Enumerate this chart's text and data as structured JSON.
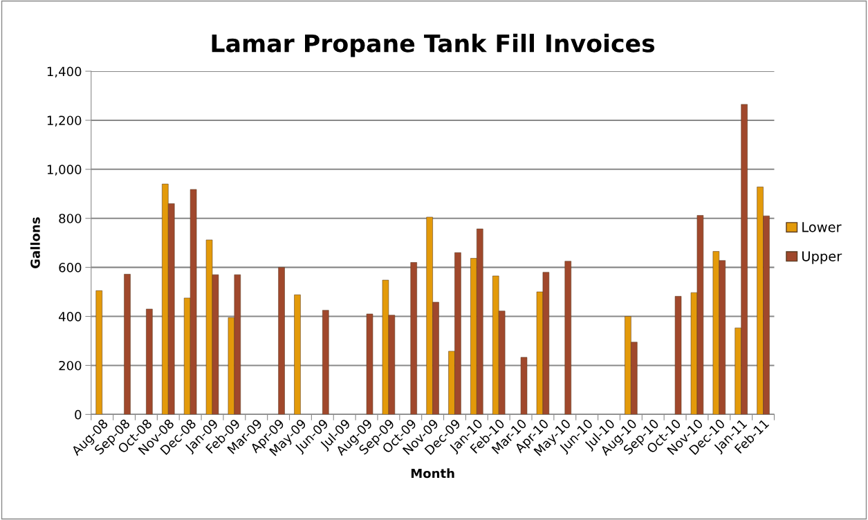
{
  "chart_data": {
    "type": "bar",
    "title": "Lamar Propane Tank Fill Invoices",
    "xlabel": "Month",
    "ylabel": "Gallons",
    "categories": [
      "Aug-08",
      "Sep-08",
      "Oct-08",
      "Nov-08",
      "Dec-08",
      "Jan-09",
      "Feb-09",
      "Mar-09",
      "Apr-09",
      "May-09",
      "Jun-09",
      "Jul-09",
      "Aug-09",
      "Sep-09",
      "Oct-09",
      "Nov-09",
      "Dec-09",
      "Jan-10",
      "Feb-10",
      "Mar-10",
      "Apr-10",
      "May-10",
      "Jun-10",
      "Jul-10",
      "Aug-10",
      "Sep-10",
      "Oct-10",
      "Nov-10",
      "Dec-10",
      "Jan-11",
      "Feb-11"
    ],
    "series": [
      {
        "name": "Lower",
        "color": "#e39a0a",
        "values": [
          505,
          null,
          null,
          940,
          475,
          712,
          395,
          null,
          null,
          488,
          null,
          null,
          null,
          548,
          null,
          805,
          258,
          637,
          565,
          null,
          500,
          null,
          null,
          null,
          400,
          null,
          null,
          497,
          665,
          353,
          928
        ]
      },
      {
        "name": "Upper",
        "color": "#a0482c",
        "values": [
          null,
          572,
          430,
          860,
          918,
          570,
          570,
          null,
          600,
          null,
          425,
          null,
          410,
          405,
          620,
          458,
          660,
          757,
          422,
          233,
          580,
          625,
          null,
          null,
          295,
          null,
          482,
          812,
          628,
          1265,
          810
        ]
      }
    ],
    "ylim": [
      0,
      1400
    ],
    "yticks": [
      {
        "value": 0,
        "label": "0"
      },
      {
        "value": 200,
        "label": "200"
      },
      {
        "value": 400,
        "label": "400"
      },
      {
        "value": 600,
        "label": "600"
      },
      {
        "value": 800,
        "label": "800"
      },
      {
        "value": 1000,
        "label": "1,000"
      },
      {
        "value": 1200,
        "label": "1,200"
      },
      {
        "value": 1400,
        "label": "1,400"
      }
    ],
    "grid": "y",
    "legend": "right"
  }
}
